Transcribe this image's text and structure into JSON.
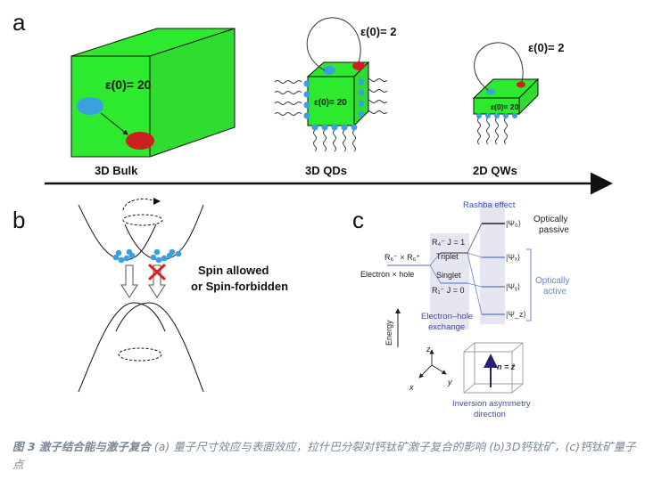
{
  "panels": {
    "a": {
      "label": "a",
      "bulk": {
        "epsilon": "ε(0)= 20",
        "name": "3D Bulk"
      },
      "qds": {
        "epsilon_out": "ε(0)= 2",
        "epsilon_in": "ε(0)= 20",
        "name": "3D QDs"
      },
      "qws": {
        "epsilon_out": "ε(0)= 2",
        "epsilon_in": "ε(0)= 20",
        "name": "2D QWs"
      }
    },
    "b": {
      "label": "b",
      "text_line1": "Spin allowed",
      "text_line2": "or Spin-forbidden"
    },
    "c": {
      "label": "c",
      "rashba": "Rashba effect",
      "optically_passive_1": "Optically",
      "optically_passive_2": "passive",
      "optically_active_1": "Optically",
      "optically_active_2": "active",
      "psi0": "|Ψ₀⟩",
      "psix": "|Ψₓ⟩",
      "psiy": "|Ψᵧ⟩",
      "psiz": "|Ψ_z⟩",
      "r4": "R₄⁻ J = 1",
      "triplet": "Triplet",
      "singlet": "Singlet",
      "r1": "R₁⁻ J = 0",
      "r6": "R₆⁻ × R₆⁺",
      "electron_hole": "Electron × hole",
      "exchange_1": "Electron–hole",
      "exchange_2": "exchange",
      "energy": "Energy",
      "axis_z": "z",
      "axis_x": "x",
      "axis_y": "y",
      "n_vector": "n = ẑ",
      "inversion_1": "Inversion asymmetry",
      "inversion_2": "direction"
    }
  },
  "caption": {
    "label": "图 3 激子结合能与激子复合",
    "text": " (a) 量子尺寸效应与表面效应，拉什巴分裂对钙钛矿激子复合的影响 (b)3D钙钛矿，(c)钙钛矿量子点"
  },
  "colors": {
    "cube_green": "#2eea2e",
    "electron_blue": "#3aa0e0",
    "hole_red": "#cc1f1f",
    "label_blue": "#3a4fa8",
    "level_blue": "#6b86c8"
  }
}
